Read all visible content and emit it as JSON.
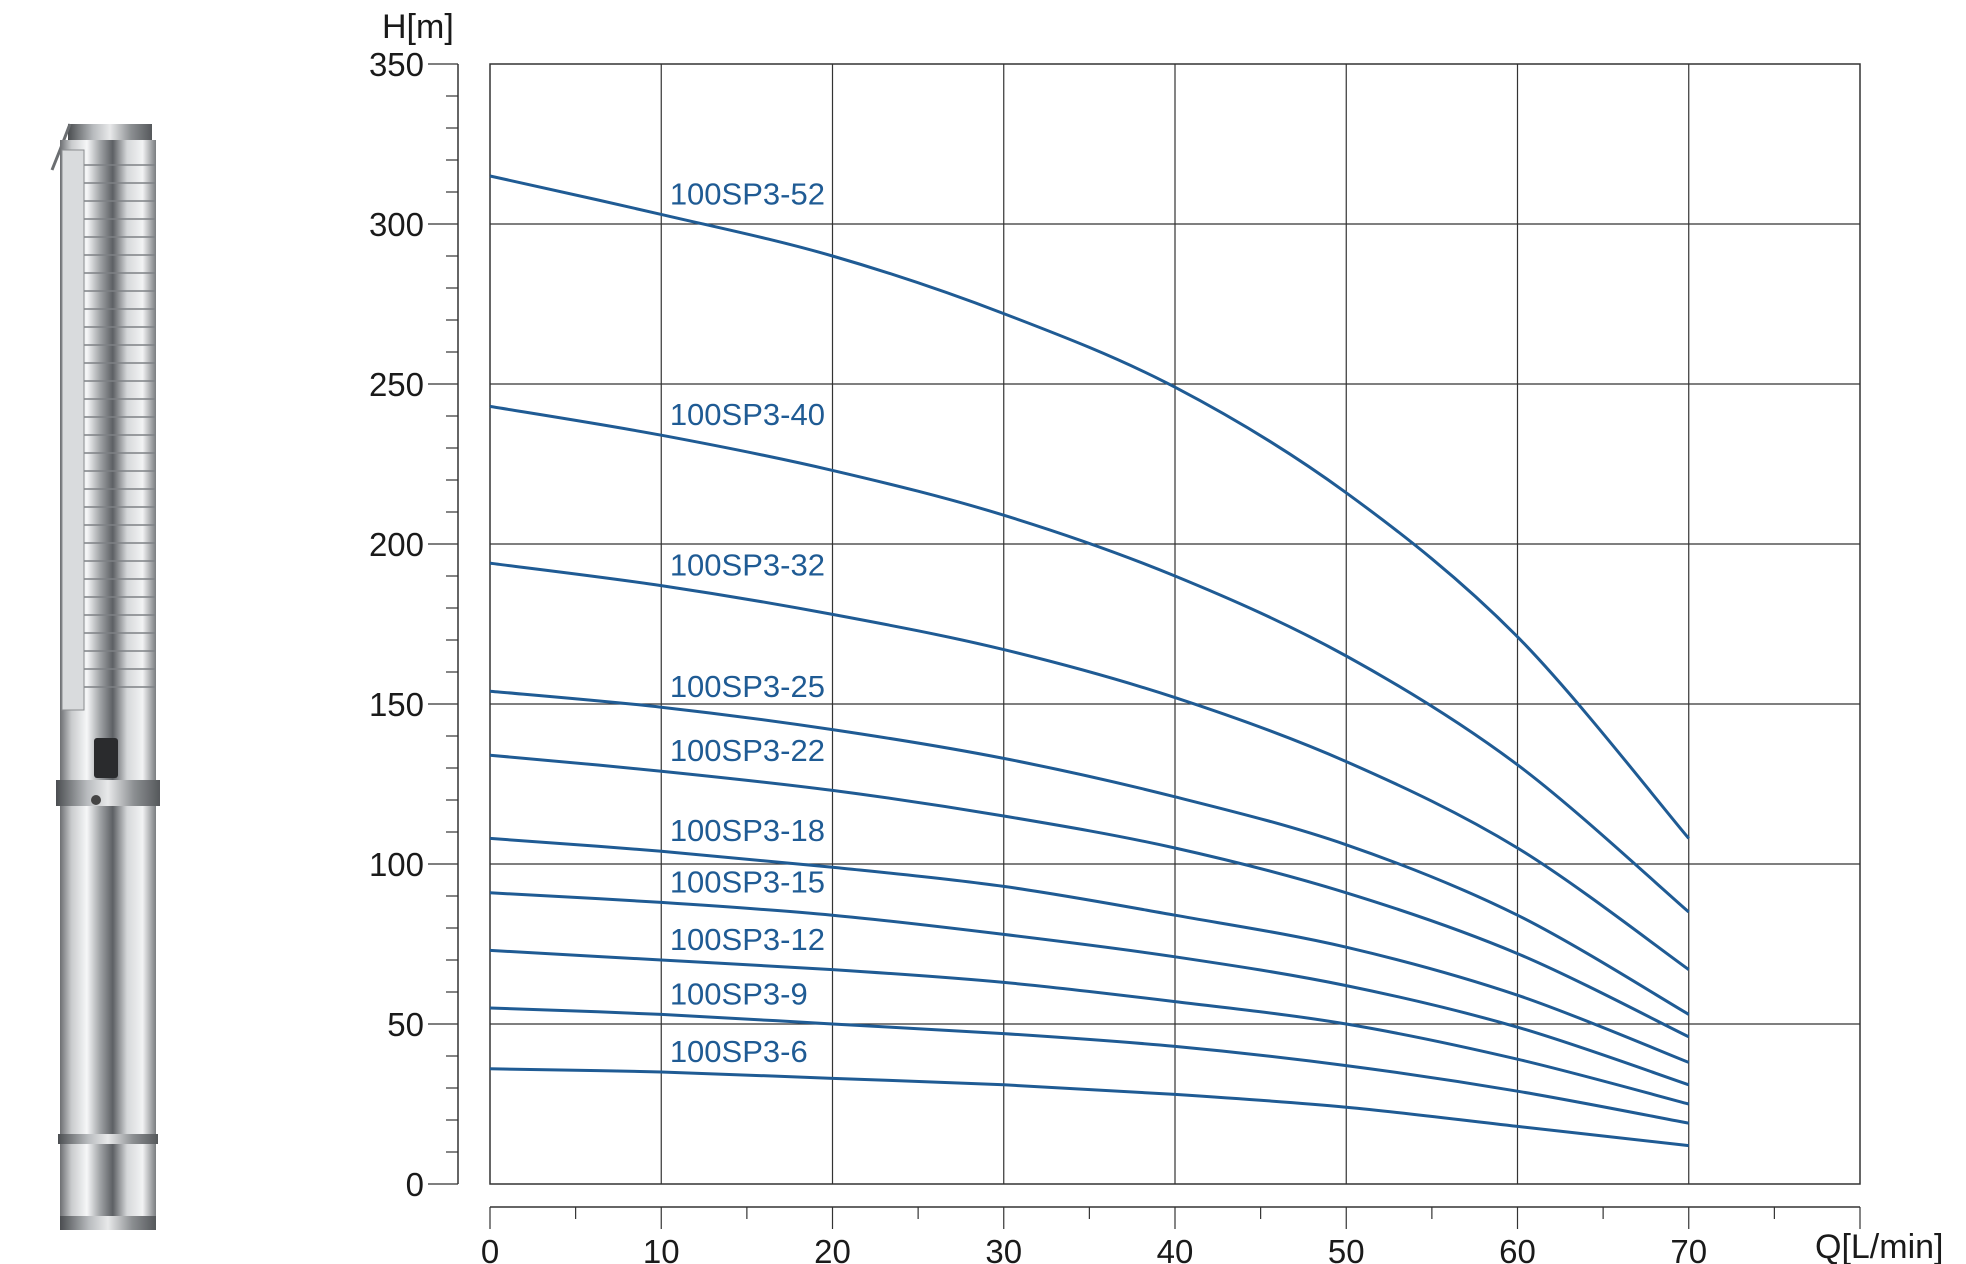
{
  "chart_data": {
    "type": "line",
    "title": "",
    "xlabel": "Q[L/min]",
    "ylabel": "H[m]",
    "xlim": [
      0,
      80
    ],
    "ylim": [
      0,
      350
    ],
    "x_ticks": [
      0,
      10,
      20,
      30,
      40,
      50,
      60,
      70
    ],
    "y_ticks": [
      0,
      50,
      100,
      150,
      200,
      250,
      300,
      350
    ],
    "grid": true,
    "line_color": "#1f5b94",
    "x": [
      0,
      10,
      20,
      30,
      40,
      50,
      60,
      70
    ],
    "series": [
      {
        "name": "100SP3-52",
        "values": [
          315,
          303,
          290,
          272,
          249,
          216,
          171,
          108
        ]
      },
      {
        "name": "100SP3-40",
        "values": [
          243,
          234,
          223,
          209,
          190,
          165,
          131,
          85
        ]
      },
      {
        "name": "100SP3-32",
        "values": [
          194,
          187,
          178,
          167,
          152,
          132,
          105,
          67
        ]
      },
      {
        "name": "100SP3-25",
        "values": [
          154,
          149,
          142,
          133,
          121,
          106,
          84,
          53
        ]
      },
      {
        "name": "100SP3-22",
        "values": [
          134,
          129,
          123,
          115,
          105,
          91,
          72,
          46
        ]
      },
      {
        "name": "100SP3-18",
        "values": [
          108,
          104,
          99,
          93,
          84,
          74,
          59,
          38
        ]
      },
      {
        "name": "100SP3-15",
        "values": [
          91,
          88,
          84,
          78,
          71,
          62,
          49,
          31
        ]
      },
      {
        "name": "100SP3-12",
        "values": [
          73,
          70,
          67,
          63,
          57,
          50,
          39,
          25
        ]
      },
      {
        "name": "100SP3-9",
        "values": [
          55,
          53,
          50,
          47,
          43,
          37,
          29,
          19
        ]
      },
      {
        "name": "100SP3-6",
        "values": [
          36,
          35,
          33,
          31,
          28,
          24,
          18,
          12
        ]
      }
    ]
  },
  "image": {
    "pump_photo_icon": "submersible-pump-icon"
  }
}
